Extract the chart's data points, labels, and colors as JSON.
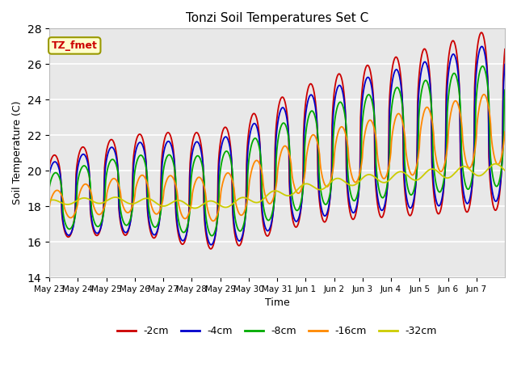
{
  "title": "Tonzi Soil Temperatures Set C",
  "xlabel": "Time",
  "ylabel": "Soil Temperature (C)",
  "ylim": [
    14,
    28
  ],
  "yticks": [
    14,
    16,
    18,
    20,
    22,
    24,
    26,
    28
  ],
  "legend_labels": [
    "-2cm",
    "-4cm",
    "-8cm",
    "-16cm",
    "-32cm"
  ],
  "legend_colors": [
    "#cc0000",
    "#0000cc",
    "#00aa00",
    "#ff8800",
    "#cccc00"
  ],
  "annotation_text": "TZ_fmet",
  "annotation_color": "#cc0000",
  "annotation_bg": "#ffffcc",
  "annotation_border": "#999900",
  "xtick_labels": [
    "May 23",
    "May 24",
    "May 25",
    "May 26",
    "May 27",
    "May 28",
    "May 29",
    "May 30",
    "May 31",
    "Jun 1",
    "Jun 2",
    "Jun 3",
    "Jun 4",
    "Jun 5",
    "Jun 6",
    "Jun 7"
  ],
  "n_days": 16
}
